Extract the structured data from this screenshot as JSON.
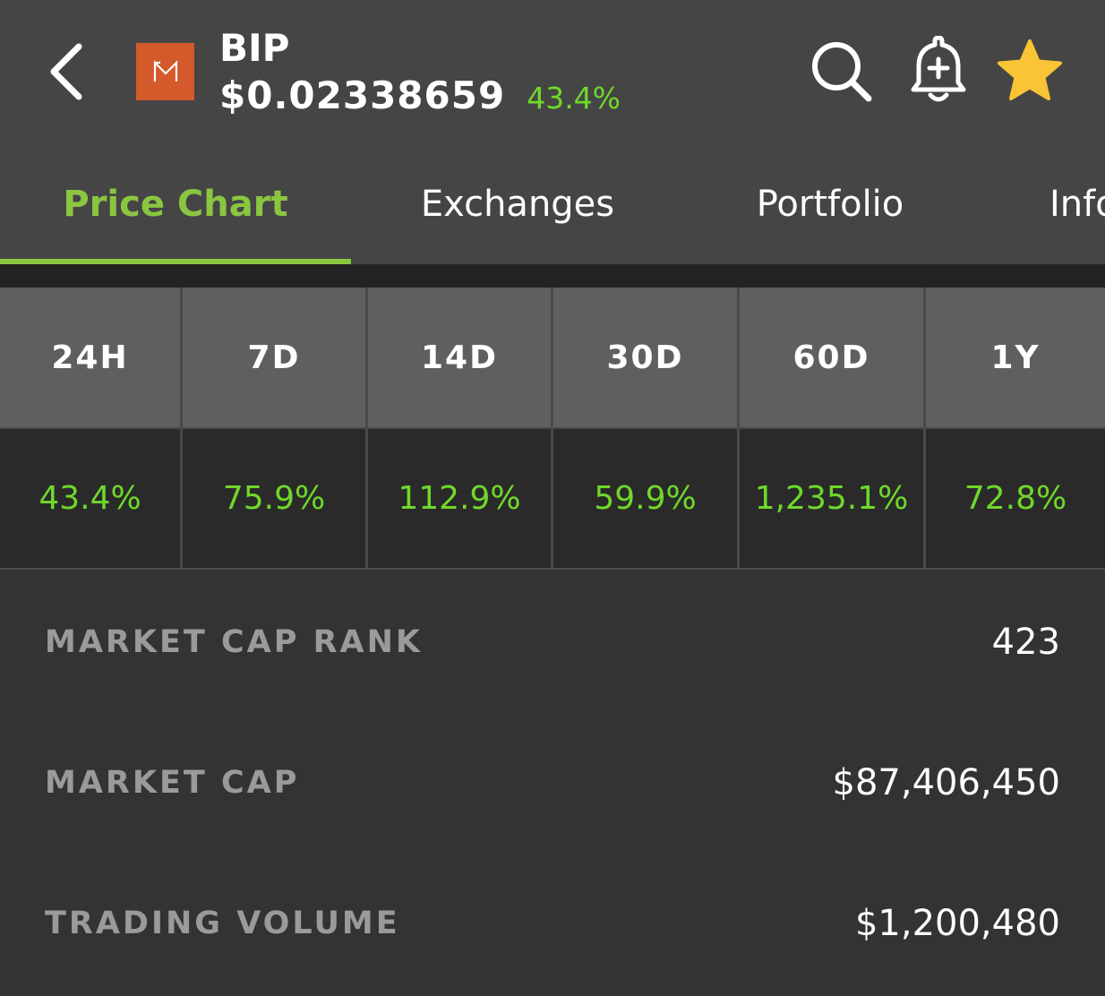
{
  "header": {
    "symbol": "BIP",
    "price": "$0.02338659",
    "change": "43.4%",
    "logo_color": "#d45a2b",
    "icons": [
      "back-arrow-icon",
      "search-icon",
      "alert-bell-icon",
      "favorite-star-icon"
    ]
  },
  "tabs": [
    {
      "label": "Price Chart",
      "active": true
    },
    {
      "label": "Exchanges",
      "active": false
    },
    {
      "label": "Portfolio",
      "active": false
    },
    {
      "label": "Info",
      "active": false
    }
  ],
  "periods": [
    {
      "label": "24H",
      "change": "43.4%"
    },
    {
      "label": "7D",
      "change": "75.9%"
    },
    {
      "label": "14D",
      "change": "112.9%"
    },
    {
      "label": "30D",
      "change": "59.9%"
    },
    {
      "label": "60D",
      "change": "1,235.1%"
    },
    {
      "label": "1Y",
      "change": "72.8%"
    }
  ],
  "stats": [
    {
      "label": "MARKET CAP RANK",
      "value": "423"
    },
    {
      "label": "MARKET CAP",
      "value": "$87,406,450"
    },
    {
      "label": "TRADING VOLUME",
      "value": "$1,200,480"
    }
  ],
  "colors": {
    "accent": "#8ac640",
    "positive": "#6fd92a",
    "star": "#f9c435"
  }
}
